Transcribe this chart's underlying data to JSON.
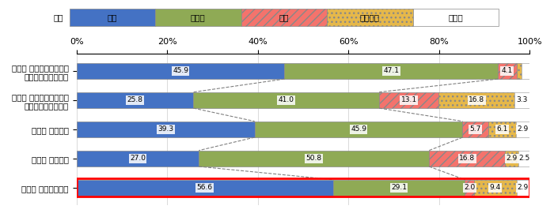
{
  "categories": [
    "（１） 研究開発全体",
    "（２） 基礎研究",
    "（３） 応用研究",
    "（４） 既存事業に関する\n商品・サービス開発",
    "（５） 新規事業に関する\n商品・サービス開発"
  ],
  "series": {
    "増加": [
      45.9,
      25.8,
      39.3,
      27.0,
      56.6
    ],
    "横ばい": [
      47.1,
      41.0,
      45.9,
      50.8,
      29.1
    ],
    "減少": [
      4.1,
      13.1,
      5.7,
      16.8,
      2.0
    ],
    "該当なし": [
      1.2,
      16.8,
      6.1,
      2.9,
      9.4
    ],
    "無回答": [
      1.6,
      3.3,
      2.9,
      2.5,
      2.9
    ]
  },
  "colors": {
    "増加": "#4472c4",
    "横ばい": "#8faa55",
    "減少": "#f4736c",
    "該当なし": "#e6b84a",
    "無回答": "#ffffff"
  },
  "hatch": {
    "増加": "",
    "横ばい": "",
    "減少": "///",
    "該当なし": "...",
    "無回答": ""
  },
  "legend_labels": [
    "増加",
    "横ばい",
    "減少",
    "該当なし",
    "無回答"
  ],
  "highlight_row": 4,
  "bar_height": 0.55,
  "figsize": [
    7.0,
    2.75
  ],
  "dpi": 100,
  "xlim": [
    0,
    100
  ],
  "xticks": [
    0,
    20,
    40,
    60,
    80,
    100
  ],
  "xticklabels": [
    "0%",
    "20%",
    "40%",
    "60%",
    "80%",
    "100%"
  ],
  "legend_row_label": "凡例",
  "bg_color": "#f0f0f0"
}
